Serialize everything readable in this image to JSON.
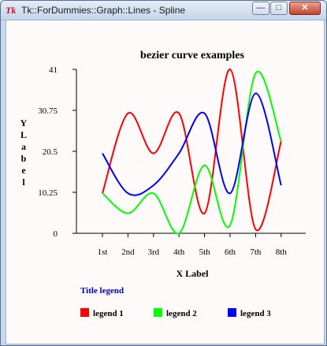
{
  "window": {
    "title": "Tk::ForDummies::Graph::Lines - Spline",
    "app_icon_glyph": "Tk",
    "buttons": {
      "minimize": "—",
      "maximize": "□",
      "close": "✕"
    }
  },
  "chart_data": {
    "type": "line",
    "title": "bezier curve examples",
    "xlabel": "X Label",
    "ylabel": "Y Label",
    "categories": [
      "1st",
      "2nd",
      "3rd",
      "4th",
      "5th",
      "6th",
      "7th",
      "8th"
    ],
    "ylim": [
      0,
      41
    ],
    "yticks": [
      0,
      10.25,
      20.5,
      30.75,
      41
    ],
    "ytick_labels": [
      "0",
      "10.25",
      "20.5",
      "30.75",
      "41"
    ],
    "smooth": true,
    "series": [
      {
        "name": "legend 1",
        "color": "#ff0000",
        "values": [
          10,
          30,
          20,
          30,
          5,
          41,
          1,
          23
        ]
      },
      {
        "name": "legend 2",
        "color": "#00ff00",
        "values": [
          10,
          5,
          10,
          0,
          17,
          2,
          40,
          23
        ]
      },
      {
        "name": "legend 3",
        "color": "#0000ff",
        "values": [
          20,
          10,
          12,
          20,
          30,
          10,
          35,
          12
        ]
      }
    ],
    "legend": {
      "title": "Title legend",
      "placement": "bottom"
    }
  }
}
